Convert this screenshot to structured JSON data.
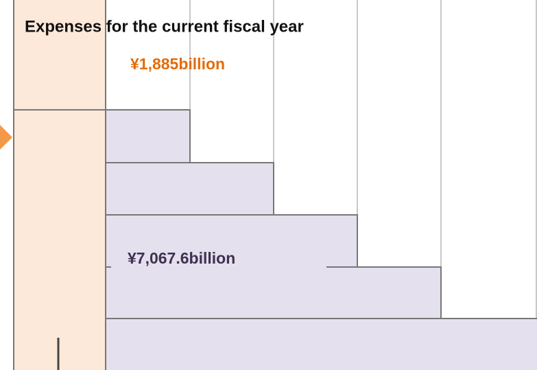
{
  "header": {
    "title": "Expenses for the current fiscal year"
  },
  "labels": {
    "top_amount": "¥1,885billion",
    "bottom_amount": "¥7,067.6billion"
  }
}
